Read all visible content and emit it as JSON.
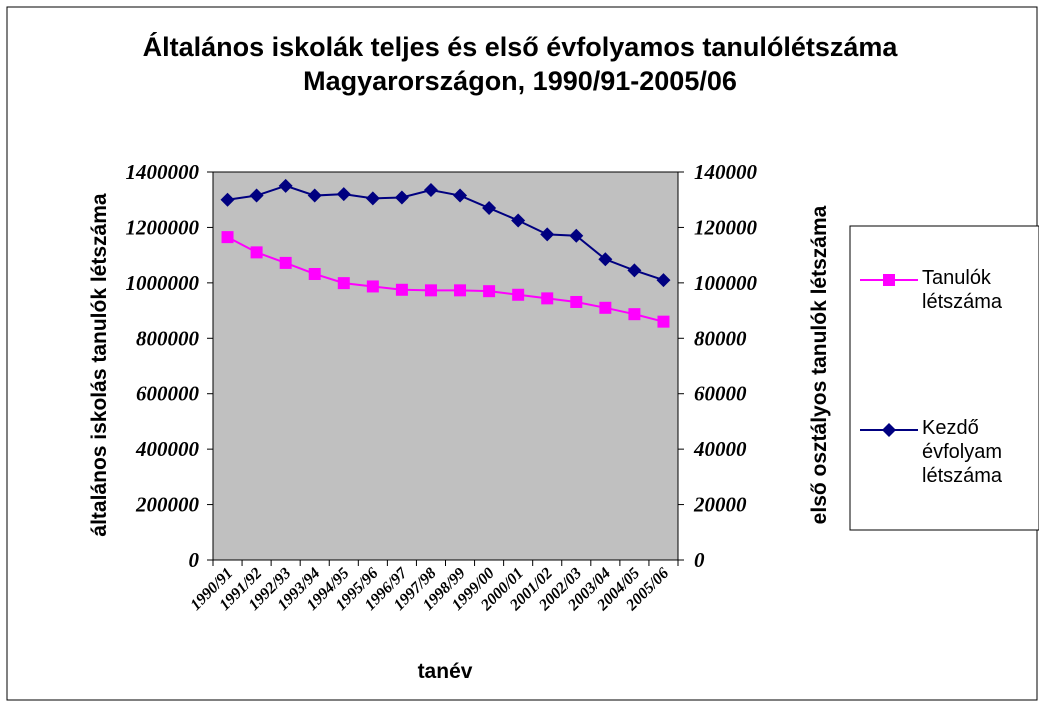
{
  "chart_data": {
    "type": "line",
    "title": "Általános iskolák teljes és első évfolyamos tanulólétszáma Magyarországon, 1990/91-2005/06",
    "xlabel": "tanév",
    "ylabel": "általános iskolás tanulók létszáma",
    "y2label": "első osztályos tanulók létszáma",
    "categories": [
      "1990/91",
      "1991/92",
      "1992/93",
      "1993/94",
      "1994/95",
      "1995/96",
      "1996/97",
      "1997/98",
      "1998/99",
      "1999/00",
      "2000/01",
      "2001/02",
      "2002/03",
      "2003/04",
      "2004/05",
      "2005/06"
    ],
    "series": [
      {
        "name": "Tanulók létszáma",
        "color": "#ff00ff",
        "marker": "square",
        "axis": "y",
        "values": [
          1165000,
          1110000,
          1072000,
          1032000,
          999000,
          987000,
          975000,
          973000,
          973000,
          970000,
          957000,
          944000,
          931000,
          910000,
          887000,
          860000
        ]
      },
      {
        "name": "Kezdő évfolyam létszáma",
        "color": "#000080",
        "marker": "diamond",
        "axis": "y2",
        "values": [
          130000,
          131500,
          135000,
          131500,
          132000,
          130500,
          130800,
          133500,
          131500,
          127000,
          122500,
          117500,
          117000,
          108500,
          104500,
          101000
        ]
      }
    ],
    "ylim": [
      0,
      1400000
    ],
    "yticks": [
      0,
      200000,
      400000,
      600000,
      800000,
      1000000,
      1200000,
      1400000
    ],
    "y2lim": [
      0,
      140000
    ],
    "y2ticks": [
      0,
      20000,
      40000,
      60000,
      80000,
      100000,
      120000,
      140000
    ],
    "legend": "right",
    "background": "#c0c0c0"
  }
}
